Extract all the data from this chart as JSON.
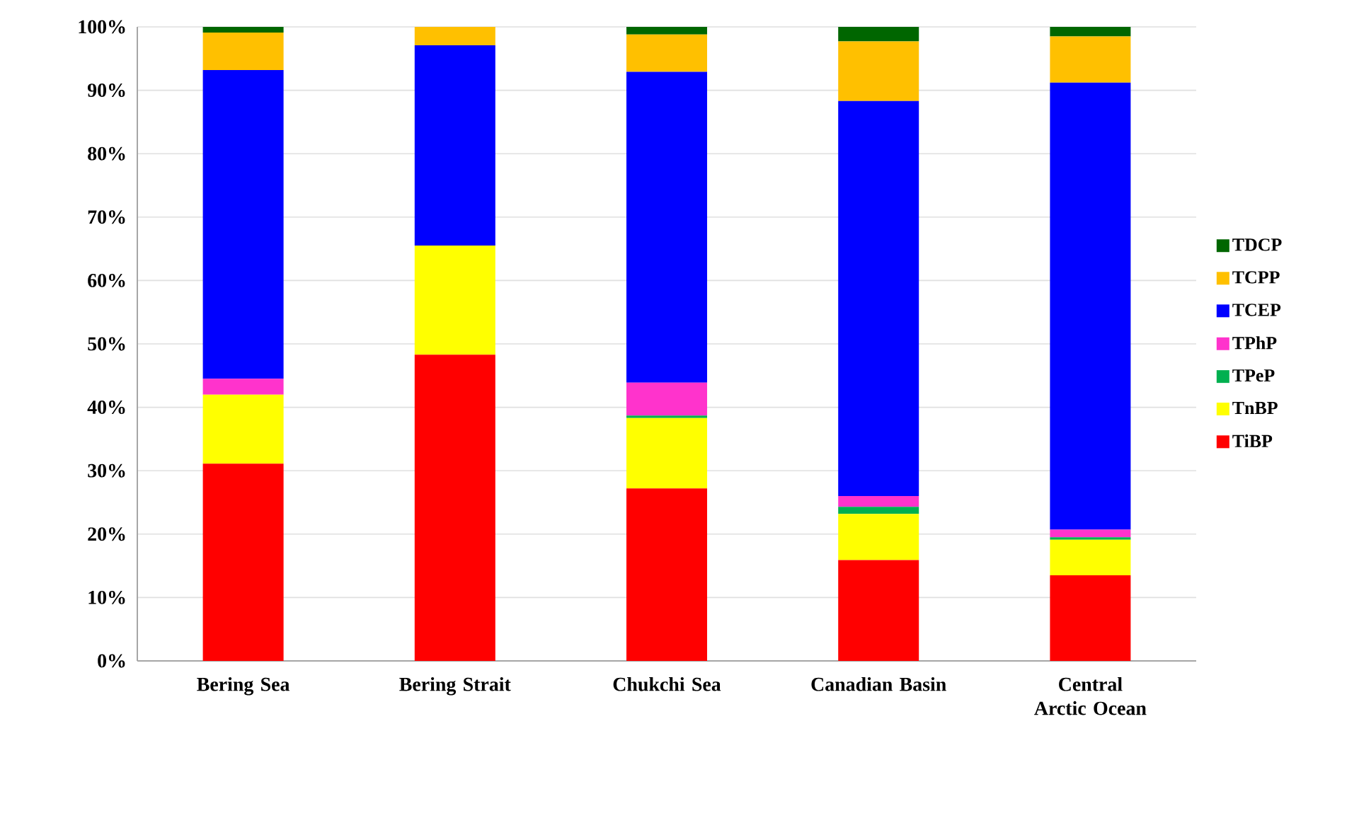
{
  "chart_data": {
    "type": "bar",
    "stacked": true,
    "categories": [
      "Bering Sea",
      "Bering Strait",
      "Chukchi Sea",
      "Canadian Basin",
      "Central Arctic Ocean"
    ],
    "series": [
      {
        "name": "TiBP",
        "color": "#ff0000",
        "values": [
          31.1,
          48.3,
          27.2,
          15.9,
          13.5
        ]
      },
      {
        "name": "TnBP",
        "color": "#ffff00",
        "values": [
          10.9,
          17.2,
          11.1,
          7.3,
          5.6
        ]
      },
      {
        "name": "TPeP",
        "color": "#00b050",
        "values": [
          0,
          0,
          0.4,
          1.1,
          0.4
        ]
      },
      {
        "name": "TPhP",
        "color": "#ff33cc",
        "values": [
          2.5,
          0,
          5.2,
          1.7,
          1.2
        ]
      },
      {
        "name": "TCEP",
        "color": "#0000ff",
        "values": [
          48.7,
          31.6,
          49.0,
          62.3,
          70.5
        ]
      },
      {
        "name": "TCPP",
        "color": "#ffc000",
        "values": [
          5.9,
          2.9,
          5.9,
          9.4,
          7.3
        ]
      },
      {
        "name": "TDCP",
        "color": "#006600",
        "values": [
          0.9,
          0,
          1.2,
          2.3,
          1.5
        ]
      }
    ],
    "ylim": [
      0,
      100
    ],
    "yticks": [
      {
        "value": 0,
        "label": "0%"
      },
      {
        "value": 10,
        "label": "10%"
      },
      {
        "value": 20,
        "label": "20%"
      },
      {
        "value": 30,
        "label": "30%"
      },
      {
        "value": 40,
        "label": "40%"
      },
      {
        "value": 50,
        "label": "50%"
      },
      {
        "value": 60,
        "label": "60%"
      },
      {
        "value": 70,
        "label": "70%"
      },
      {
        "value": 80,
        "label": "80%"
      },
      {
        "value": 90,
        "label": "90%"
      },
      {
        "value": 100,
        "label": "100%"
      }
    ],
    "grid": "y",
    "legend": "right"
  }
}
